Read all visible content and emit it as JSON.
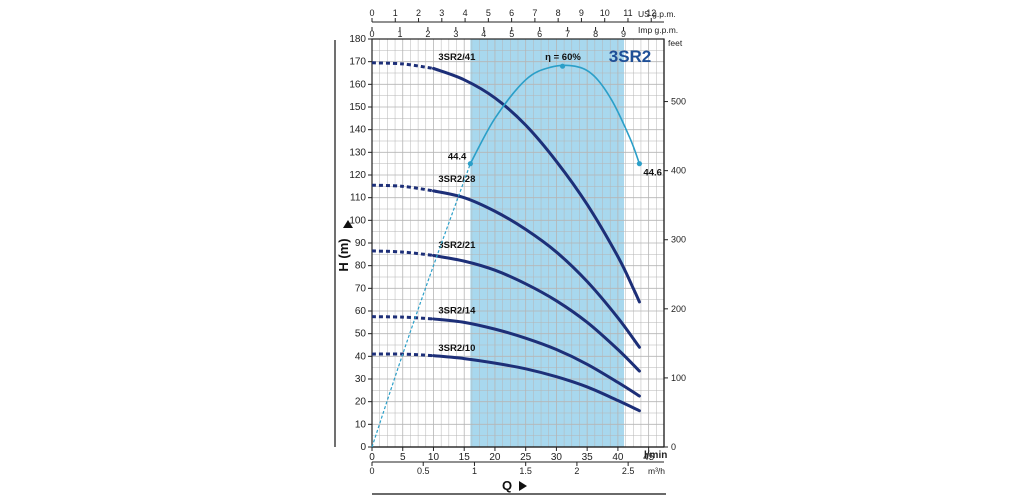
{
  "chart_data": {
    "type": "line",
    "title": "3SR2",
    "xlabel": "Q",
    "ylabel": "H (m)",
    "xlim": [
      0,
      47.5
    ],
    "ylim": [
      0,
      180
    ],
    "x_unit": "l/min",
    "x_ticks": [
      0,
      5,
      10,
      15,
      20,
      25,
      30,
      35,
      40,
      45
    ],
    "y_ticks": [
      0,
      10,
      20,
      30,
      40,
      50,
      60,
      70,
      80,
      90,
      100,
      110,
      120,
      130,
      140,
      150,
      160,
      170,
      180
    ],
    "secondary_axes": {
      "m3h": {
        "unit": "m³/h",
        "ticks": [
          "0",
          "0.5",
          "1",
          "1.5",
          "2",
          "2.5"
        ],
        "values": [
          0,
          0.5,
          1,
          1.5,
          2,
          2.5
        ]
      },
      "us_gpm": {
        "unit": "US g.p.m.",
        "ticks": [
          "0",
          "1",
          "2",
          "3",
          "4",
          "5",
          "6",
          "7",
          "8",
          "9",
          "10",
          "11",
          "12"
        ],
        "values": [
          0,
          1,
          2,
          3,
          4,
          5,
          6,
          7,
          8,
          9,
          10,
          11,
          12
        ]
      },
      "imp_gpm": {
        "unit": "Imp g.p.m.",
        "ticks": [
          "0",
          "1",
          "2",
          "3",
          "4",
          "5",
          "6",
          "7",
          "8",
          "9"
        ],
        "values": [
          0,
          1,
          2,
          3,
          4,
          5,
          6,
          7,
          8,
          9
        ]
      },
      "feet": {
        "unit": "feet",
        "ticks": [
          "0",
          "100",
          "200",
          "300",
          "400",
          "500"
        ],
        "values": [
          0,
          100,
          200,
          300,
          400,
          500
        ]
      }
    },
    "operating_range": [
      16,
      41
    ],
    "series": [
      {
        "name": "3SR2/41",
        "dashed_until": 10,
        "points": [
          [
            0,
            169.5
          ],
          [
            5,
            169
          ],
          [
            10,
            167
          ],
          [
            15,
            162
          ],
          [
            20,
            154
          ],
          [
            25,
            142
          ],
          [
            30,
            126
          ],
          [
            35,
            107
          ],
          [
            40,
            84
          ],
          [
            42.5,
            70
          ],
          [
            43.5,
            64
          ]
        ]
      },
      {
        "name": "3SR2/28",
        "dashed_until": 10,
        "points": [
          [
            0,
            115.5
          ],
          [
            5,
            115
          ],
          [
            10,
            113
          ],
          [
            15,
            110
          ],
          [
            20,
            104
          ],
          [
            25,
            96
          ],
          [
            30,
            86
          ],
          [
            35,
            73
          ],
          [
            40,
            57
          ],
          [
            43.5,
            44
          ]
        ]
      },
      {
        "name": "3SR2/21",
        "dashed_until": 10,
        "points": [
          [
            0,
            86.5
          ],
          [
            5,
            86
          ],
          [
            10,
            84.5
          ],
          [
            15,
            82
          ],
          [
            20,
            78
          ],
          [
            25,
            72
          ],
          [
            30,
            64.5
          ],
          [
            35,
            55
          ],
          [
            40,
            43
          ],
          [
            43.5,
            33.5
          ]
        ]
      },
      {
        "name": "3SR2/14",
        "dashed_until": 10,
        "points": [
          [
            0,
            57.5
          ],
          [
            5,
            57.3
          ],
          [
            10,
            56.5
          ],
          [
            15,
            55
          ],
          [
            20,
            52
          ],
          [
            25,
            48
          ],
          [
            30,
            43
          ],
          [
            35,
            36.5
          ],
          [
            40,
            28.5
          ],
          [
            43.5,
            22.5
          ]
        ]
      },
      {
        "name": "3SR2/10",
        "dashed_until": 10,
        "points": [
          [
            0,
            41
          ],
          [
            5,
            41
          ],
          [
            10,
            40.3
          ],
          [
            15,
            39
          ],
          [
            20,
            37
          ],
          [
            25,
            34.5
          ],
          [
            30,
            31
          ],
          [
            35,
            26.5
          ],
          [
            40,
            20.5
          ],
          [
            43.5,
            16
          ]
        ]
      }
    ],
    "efficiency": {
      "peak_label": "η = 60%",
      "solid_from": 16,
      "points": [
        [
          0,
          0
        ],
        [
          5,
          41
        ],
        [
          10,
          80
        ],
        [
          16,
          125
        ],
        [
          20,
          145
        ],
        [
          25,
          162
        ],
        [
          29,
          167.5
        ],
        [
          33,
          168
        ],
        [
          36,
          164
        ],
        [
          39,
          153
        ],
        [
          42,
          136
        ],
        [
          43.5,
          125
        ]
      ],
      "markers": [
        {
          "x": 16,
          "y": 125,
          "label": "44.4"
        },
        {
          "x": 31,
          "y": 168,
          "label": ""
        },
        {
          "x": 43.5,
          "y": 125,
          "label": "44.6"
        }
      ]
    }
  },
  "labels": {
    "title": "3SR2",
    "y_axis_title": "H (m)",
    "x_axis_title": "Q",
    "x_unit": "l/min",
    "m3h_unit": "m³/h",
    "us_unit": "US g.p.m.",
    "imp_unit": "Imp g.p.m.",
    "feet_unit": "feet"
  },
  "colors": {
    "curve": "#1d2f78",
    "efficiency": "#2b9fc8",
    "operating_band": "#a8d8ee",
    "grid": "#b5b5b5",
    "title": "#1f4f97"
  }
}
